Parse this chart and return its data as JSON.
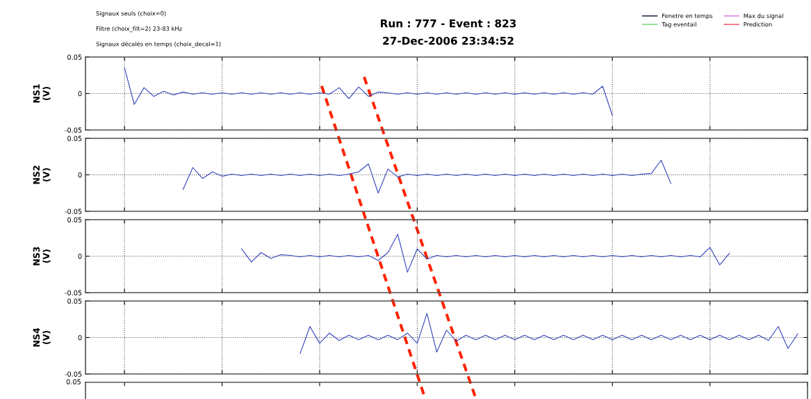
{
  "chart_data": [
    {
      "type": "line",
      "title": "Run : 777 - Event : 823",
      "subtitle": "27-Dec-2006 23:34:52",
      "ylabel": "NS1\n(V)",
      "annotations": [
        "Signaux seuls (choix=0)",
        "Filtre (choix_filt=2) 23-83 kHz",
        "Signaux décalés en temps (choix_decal=1)"
      ],
      "legend": "top right",
      "grid": true,
      "tick_labels": "y",
      "categories": [
        null,
        null,
        null,
        null,
        null,
        null,
        null,
        null,
        null,
        null,
        null,
        null,
        null,
        null,
        null,
        null,
        null,
        null,
        null,
        null,
        null,
        null,
        null,
        null,
        null,
        null,
        null,
        null,
        null,
        null,
        null,
        null,
        null,
        null,
        null,
        null,
        null,
        null,
        null,
        null,
        null,
        null,
        null,
        null,
        null,
        null,
        null,
        null,
        null,
        null,
        null,
        null,
        null,
        null,
        null,
        null,
        null,
        null,
        null,
        null,
        null,
        null,
        null,
        null,
        null,
        null,
        null,
        null,
        null,
        null,
        null,
        null,
        null,
        null,
        null
      ],
      "ylim": [
        -0.05,
        0.05
      ],
      "yticks": [
        -0.05,
        0,
        0.05
      ],
      "series": [
        {
          "color": "#3344bb",
          "values": [
            null,
            null,
            null,
            null,
            0.035,
            -0.015,
            0.008,
            -0.004,
            0.003,
            -0.002,
            0.002,
            -0.001,
            0.001,
            -0.001,
            0.001,
            -0.001,
            0.001,
            -0.001,
            0.001,
            -0.001,
            0.001,
            -0.001,
            0.001,
            -0.001,
            0.001,
            -0.001,
            0.008,
            -0.007,
            0.009,
            -0.004,
            0.002,
            0.001,
            -0.001,
            0.001,
            -0.001,
            0.001,
            -0.001,
            0.001,
            -0.001,
            0.001,
            -0.001,
            0.001,
            -0.001,
            0.001,
            -0.001,
            0.001,
            -0.001,
            0.001,
            -0.001,
            0.001,
            -0.001,
            0.001,
            -0.001,
            0.01,
            -0.03,
            null,
            null,
            null,
            null,
            null,
            null,
            null,
            null,
            null,
            null,
            null,
            null,
            null,
            null,
            null,
            null,
            null,
            null,
            null,
            null
          ]
        },
        {
          "name": "Fenetre en temps",
          "color": "#333355",
          "values": [
            null,
            null,
            null,
            null,
            null,
            null,
            null,
            null,
            null,
            null,
            null,
            null,
            null,
            null,
            null,
            null,
            null,
            null,
            null,
            null,
            null,
            null,
            null,
            null,
            null,
            null,
            null,
            null,
            null,
            null,
            null,
            null,
            null,
            null,
            null,
            null,
            null,
            null,
            null,
            null,
            null,
            null,
            null,
            null,
            null,
            null,
            null,
            null,
            null,
            null,
            null,
            null,
            null,
            null,
            null,
            null,
            null,
            null,
            null,
            null,
            null,
            null,
            null,
            null,
            null,
            null,
            null,
            null,
            null,
            null,
            null,
            null,
            null,
            null,
            null
          ]
        },
        {
          "name": "Tag eventail",
          "color": "#88dd88",
          "values": [
            null,
            null,
            null,
            null,
            null,
            null,
            null,
            null,
            null,
            null,
            null,
            null,
            null,
            null,
            null,
            null,
            null,
            null,
            null,
            null,
            null,
            null,
            null,
            null,
            null,
            null,
            null,
            null,
            null,
            null,
            null,
            null,
            null,
            null,
            null,
            null,
            null,
            null,
            null,
            null,
            null,
            null,
            null,
            null,
            null,
            null,
            null,
            null,
            null,
            null,
            null,
            null,
            null,
            null,
            null,
            null,
            null,
            null,
            null,
            null,
            null,
            null,
            null,
            null,
            null,
            null,
            null,
            null,
            null,
            null,
            null,
            null,
            null,
            null,
            null
          ]
        },
        {
          "name": "Max du signal",
          "color": "#dd88dd",
          "values": [
            null,
            null,
            null,
            null,
            null,
            null,
            null,
            null,
            null,
            null,
            null,
            null,
            null,
            null,
            null,
            null,
            null,
            null,
            null,
            null,
            null,
            null,
            null,
            null,
            null,
            null,
            null,
            null,
            null,
            null,
            null,
            null,
            null,
            null,
            null,
            null,
            null,
            null,
            null,
            null,
            null,
            null,
            null,
            null,
            null,
            null,
            null,
            null,
            null,
            null,
            null,
            null,
            null,
            null,
            null,
            null,
            null,
            null,
            null,
            null,
            null,
            null,
            null,
            null,
            null,
            null,
            null,
            null,
            null,
            null,
            null,
            null,
            null,
            null,
            null
          ]
        },
        {
          "name": "Prediction",
          "color": "#ee6677",
          "values": [
            null,
            null,
            null,
            null,
            null,
            null,
            null,
            null,
            null,
            null,
            null,
            null,
            null,
            null,
            null,
            null,
            null,
            null,
            null,
            null,
            null,
            null,
            null,
            null,
            null,
            null,
            null,
            null,
            null,
            null,
            null,
            null,
            null,
            null,
            null,
            null,
            null,
            null,
            null,
            null,
            null,
            null,
            null,
            null,
            null,
            null,
            null,
            null,
            null,
            null,
            null,
            null,
            null,
            null,
            null,
            null,
            null,
            null,
            null,
            null,
            null,
            null,
            null,
            null,
            null,
            null,
            null,
            null,
            null,
            null,
            null,
            null,
            null,
            null,
            null
          ]
        }
      ]
    },
    {
      "type": "line",
      "ylabel": "NS2\n(V)",
      "grid": true,
      "tick_labels": "y",
      "categories": [
        null,
        null,
        null,
        null,
        null,
        null,
        null,
        null,
        null,
        null,
        null,
        null,
        null,
        null,
        null,
        null,
        null,
        null,
        null,
        null,
        null,
        null,
        null,
        null,
        null,
        null,
        null,
        null,
        null,
        null,
        null,
        null,
        null,
        null,
        null,
        null,
        null,
        null,
        null,
        null,
        null,
        null,
        null,
        null,
        null,
        null,
        null,
        null,
        null,
        null,
        null,
        null,
        null,
        null,
        null,
        null,
        null,
        null,
        null,
        null,
        null,
        null,
        null,
        null,
        null,
        null,
        null,
        null,
        null,
        null,
        null,
        null,
        null,
        null,
        null
      ],
      "ylim": [
        -0.05,
        0.05
      ],
      "yticks": [
        -0.05,
        0,
        0.05
      ],
      "series": [
        {
          "color": "#3344bb",
          "values": [
            null,
            null,
            null,
            null,
            null,
            null,
            null,
            null,
            null,
            null,
            -0.02,
            0.01,
            -0.005,
            0.004,
            -0.002,
            0.001,
            -0.001,
            0.001,
            -0.001,
            0.001,
            -0.001,
            0.001,
            -0.001,
            0.001,
            -0.001,
            0.001,
            -0.001,
            0.001,
            0.004,
            0.015,
            -0.025,
            0.008,
            -0.003,
            0.001,
            -0.001,
            0.001,
            -0.001,
            0.001,
            -0.001,
            0.001,
            -0.001,
            0.001,
            -0.001,
            0.001,
            -0.001,
            0.001,
            -0.001,
            0.001,
            -0.001,
            0.001,
            -0.001,
            0.001,
            -0.001,
            0.001,
            -0.001,
            0.001,
            -0.001,
            0.001,
            0.002,
            0.02,
            -0.012,
            null,
            null,
            null,
            null,
            null,
            null,
            null,
            null,
            null,
            null,
            null,
            null,
            null,
            null
          ]
        }
      ]
    },
    {
      "type": "line",
      "ylabel": "NS3\n(V)",
      "grid": true,
      "tick_labels": "y",
      "categories": [
        null,
        null,
        null,
        null,
        null,
        null,
        null,
        null,
        null,
        null,
        null,
        null,
        null,
        null,
        null,
        null,
        null,
        null,
        null,
        null,
        null,
        null,
        null,
        null,
        null,
        null,
        null,
        null,
        null,
        null,
        null,
        null,
        null,
        null,
        null,
        null,
        null,
        null,
        null,
        null,
        null,
        null,
        null,
        null,
        null,
        null,
        null,
        null,
        null,
        null,
        null,
        null,
        null,
        null,
        null,
        null,
        null,
        null,
        null,
        null,
        null,
        null,
        null,
        null,
        null,
        null,
        null,
        null,
        null,
        null,
        null,
        null,
        null,
        null,
        null
      ],
      "ylim": [
        -0.05,
        0.05
      ],
      "yticks": [
        -0.05,
        0,
        0.05
      ],
      "series": [
        {
          "color": "#3344bb",
          "values": [
            null,
            null,
            null,
            null,
            null,
            null,
            null,
            null,
            null,
            null,
            null,
            null,
            null,
            null,
            null,
            null,
            0.01,
            -0.008,
            0.005,
            -0.003,
            0.002,
            0.001,
            -0.001,
            0.001,
            -0.001,
            0.001,
            -0.001,
            0.001,
            -0.001,
            0.001,
            -0.006,
            0.005,
            0.03,
            -0.022,
            0.01,
            -0.004,
            0.001,
            -0.001,
            0.001,
            -0.001,
            0.001,
            -0.001,
            0.001,
            -0.001,
            0.001,
            -0.001,
            0.001,
            -0.001,
            0.001,
            -0.001,
            0.001,
            -0.001,
            0.001,
            -0.001,
            0.001,
            -0.001,
            0.001,
            -0.001,
            0.001,
            -0.001,
            0.001,
            -0.001,
            0.001,
            -0.001,
            0.012,
            -0.012,
            0.004,
            null,
            null,
            null,
            null,
            null,
            null,
            null,
            null
          ]
        }
      ]
    },
    {
      "type": "line",
      "ylabel": "NS4\n(V)",
      "grid": true,
      "tick_labels": "y",
      "categories": [
        null,
        null,
        null,
        null,
        null,
        null,
        null,
        null,
        null,
        null,
        null,
        null,
        null,
        null,
        null,
        null,
        null,
        null,
        null,
        null,
        null,
        null,
        null,
        null,
        null,
        null,
        null,
        null,
        null,
        null,
        null,
        null,
        null,
        null,
        null,
        null,
        null,
        null,
        null,
        null,
        null,
        null,
        null,
        null,
        null,
        null,
        null,
        null,
        null,
        null,
        null,
        null,
        null,
        null,
        null,
        null,
        null,
        null,
        null,
        null,
        null,
        null,
        null,
        null,
        null,
        null,
        null,
        null,
        null,
        null,
        null,
        null,
        null,
        null,
        null
      ],
      "ylim": [
        -0.05,
        0.05
      ],
      "yticks": [
        -0.05,
        0,
        0.05
      ],
      "series": [
        {
          "color": "#3344bb",
          "values": [
            null,
            null,
            null,
            null,
            null,
            null,
            null,
            null,
            null,
            null,
            null,
            null,
            null,
            null,
            null,
            null,
            null,
            null,
            null,
            null,
            null,
            null,
            -0.022,
            0.015,
            -0.008,
            0.006,
            -0.004,
            0.003,
            -0.003,
            0.003,
            -0.003,
            0.003,
            -0.003,
            0.006,
            -0.008,
            0.033,
            -0.02,
            0.01,
            -0.005,
            0.003,
            -0.003,
            0.003,
            -0.003,
            0.003,
            -0.003,
            0.003,
            -0.003,
            0.003,
            -0.003,
            0.003,
            -0.003,
            0.003,
            -0.003,
            0.003,
            -0.003,
            0.003,
            -0.003,
            0.003,
            -0.003,
            0.003,
            -0.003,
            0.003,
            -0.003,
            0.003,
            -0.003,
            0.003,
            -0.003,
            0.003,
            -0.003,
            0.003,
            -0.004,
            0.015,
            -0.015,
            0.005,
            null
          ]
        }
      ]
    },
    {
      "type": "other",
      "annotations": [
        "0.05"
      ]
    }
  ]
}
